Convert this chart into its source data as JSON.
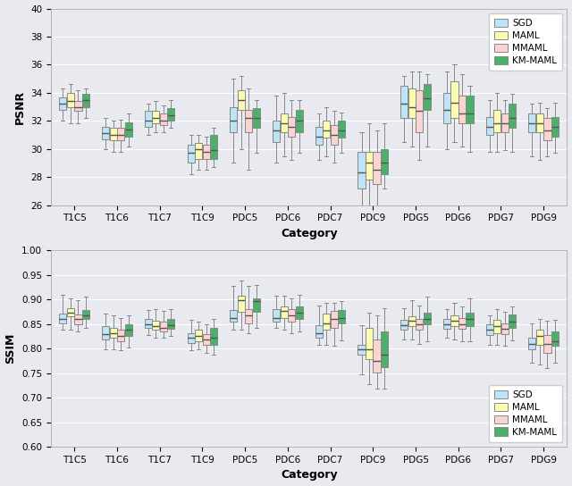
{
  "categories": [
    "T1C5",
    "T1C6",
    "T1C7",
    "T1C9",
    "PDC5",
    "PDC6",
    "PDC7",
    "PDC9",
    "PDG5",
    "PDG6",
    "PDG7",
    "PDG9"
  ],
  "methods": [
    "SGD",
    "MAML",
    "MMAML",
    "KM-MAML"
  ],
  "colors": [
    "#BDE3F5",
    "#FAFAB0",
    "#FAD4D0",
    "#4CAF6A"
  ],
  "psnr_data": {
    "SGD": [
      [
        32.0,
        32.8,
        33.2,
        33.7,
        34.3
      ],
      [
        30.0,
        30.7,
        31.1,
        31.6,
        32.2
      ],
      [
        31.0,
        31.6,
        32.0,
        32.7,
        33.2
      ],
      [
        28.2,
        29.0,
        29.7,
        30.3,
        31.0
      ],
      [
        29.0,
        31.2,
        32.0,
        33.0,
        35.0
      ],
      [
        29.0,
        30.5,
        31.3,
        32.0,
        33.8
      ],
      [
        29.2,
        30.3,
        30.9,
        31.6,
        32.5
      ],
      [
        24.5,
        27.2,
        28.3,
        29.8,
        31.2
      ],
      [
        30.5,
        32.2,
        33.2,
        34.5,
        35.2
      ],
      [
        30.0,
        31.8,
        32.8,
        34.0,
        35.5
      ],
      [
        29.8,
        31.0,
        31.6,
        32.3,
        33.5
      ],
      [
        29.5,
        31.2,
        31.8,
        32.5,
        33.2
      ]
    ],
    "MAML": [
      [
        31.8,
        33.0,
        33.4,
        34.0,
        34.6
      ],
      [
        29.8,
        30.6,
        31.0,
        31.5,
        32.0
      ],
      [
        31.2,
        31.8,
        32.2,
        32.7,
        33.4
      ],
      [
        28.5,
        29.3,
        30.0,
        30.4,
        31.0
      ],
      [
        30.0,
        32.8,
        33.5,
        34.2,
        35.2
      ],
      [
        29.5,
        31.2,
        31.8,
        32.5,
        34.0
      ],
      [
        29.5,
        30.8,
        31.3,
        32.0,
        33.0
      ],
      [
        25.5,
        27.8,
        29.0,
        29.8,
        31.8
      ],
      [
        30.2,
        32.2,
        33.0,
        34.3,
        35.5
      ],
      [
        30.5,
        32.2,
        33.3,
        34.8,
        36.0
      ],
      [
        29.8,
        31.2,
        31.8,
        32.8,
        34.0
      ],
      [
        29.2,
        31.2,
        31.8,
        32.5,
        33.3
      ]
    ],
    "MMAML": [
      [
        31.8,
        32.7,
        33.0,
        33.4,
        34.2
      ],
      [
        29.8,
        30.6,
        31.0,
        31.5,
        32.1
      ],
      [
        31.2,
        31.7,
        32.0,
        32.5,
        33.1
      ],
      [
        28.5,
        29.3,
        29.8,
        30.3,
        30.9
      ],
      [
        28.5,
        31.2,
        32.2,
        32.8,
        34.3
      ],
      [
        29.2,
        30.9,
        31.6,
        32.3,
        33.5
      ],
      [
        29.0,
        30.3,
        31.0,
        31.7,
        32.7
      ],
      [
        25.8,
        27.5,
        28.5,
        29.8,
        31.3
      ],
      [
        29.2,
        31.2,
        32.7,
        34.2,
        35.5
      ],
      [
        30.2,
        31.8,
        32.5,
        33.8,
        35.3
      ],
      [
        29.9,
        31.2,
        31.8,
        32.5,
        33.5
      ],
      [
        29.5,
        30.6,
        31.3,
        32.2,
        32.9
      ]
    ],
    "KM-MAML": [
      [
        32.2,
        33.0,
        33.5,
        33.9,
        34.3
      ],
      [
        30.2,
        30.9,
        31.4,
        31.9,
        32.5
      ],
      [
        31.5,
        32.0,
        32.4,
        32.9,
        33.5
      ],
      [
        28.7,
        29.3,
        29.9,
        31.0,
        31.5
      ],
      [
        29.7,
        31.5,
        32.2,
        32.9,
        33.5
      ],
      [
        29.7,
        31.2,
        32.0,
        32.8,
        33.5
      ],
      [
        29.7,
        30.8,
        31.3,
        32.0,
        32.6
      ],
      [
        27.2,
        28.2,
        29.0,
        30.0,
        31.8
      ],
      [
        30.2,
        32.8,
        33.6,
        34.6,
        35.3
      ],
      [
        29.8,
        31.8,
        32.5,
        33.8,
        34.5
      ],
      [
        29.8,
        31.5,
        32.2,
        33.2,
        33.9
      ],
      [
        29.7,
        30.9,
        31.6,
        32.3,
        33.3
      ]
    ]
  },
  "ssim_data": {
    "SGD": [
      [
        0.838,
        0.852,
        0.86,
        0.872,
        0.91
      ],
      [
        0.798,
        0.818,
        0.83,
        0.845,
        0.872
      ],
      [
        0.828,
        0.842,
        0.85,
        0.86,
        0.878
      ],
      [
        0.796,
        0.812,
        0.822,
        0.832,
        0.858
      ],
      [
        0.838,
        0.855,
        0.863,
        0.878,
        0.928
      ],
      [
        0.842,
        0.855,
        0.863,
        0.88,
        0.908
      ],
      [
        0.808,
        0.822,
        0.832,
        0.848,
        0.888
      ],
      [
        0.748,
        0.788,
        0.798,
        0.808,
        0.848
      ],
      [
        0.818,
        0.838,
        0.848,
        0.858,
        0.882
      ],
      [
        0.822,
        0.84,
        0.85,
        0.86,
        0.88
      ],
      [
        0.808,
        0.828,
        0.838,
        0.85,
        0.868
      ],
      [
        0.772,
        0.798,
        0.81,
        0.822,
        0.852
      ]
    ],
    "MAML": [
      [
        0.838,
        0.865,
        0.873,
        0.883,
        0.903
      ],
      [
        0.798,
        0.822,
        0.832,
        0.843,
        0.868
      ],
      [
        0.822,
        0.838,
        0.846,
        0.856,
        0.88
      ],
      [
        0.798,
        0.815,
        0.825,
        0.838,
        0.855
      ],
      [
        0.838,
        0.875,
        0.898,
        0.908,
        0.938
      ],
      [
        0.838,
        0.862,
        0.876,
        0.886,
        0.908
      ],
      [
        0.808,
        0.838,
        0.852,
        0.872,
        0.893
      ],
      [
        0.728,
        0.778,
        0.798,
        0.843,
        0.873
      ],
      [
        0.818,
        0.845,
        0.856,
        0.866,
        0.898
      ],
      [
        0.818,
        0.845,
        0.856,
        0.868,
        0.893
      ],
      [
        0.808,
        0.832,
        0.845,
        0.858,
        0.88
      ],
      [
        0.768,
        0.808,
        0.825,
        0.838,
        0.86
      ]
    ],
    "MMAML": [
      [
        0.835,
        0.85,
        0.86,
        0.87,
        0.898
      ],
      [
        0.797,
        0.815,
        0.825,
        0.838,
        0.863
      ],
      [
        0.822,
        0.835,
        0.842,
        0.855,
        0.876
      ],
      [
        0.792,
        0.808,
        0.818,
        0.83,
        0.85
      ],
      [
        0.832,
        0.852,
        0.868,
        0.88,
        0.928
      ],
      [
        0.832,
        0.855,
        0.868,
        0.88,
        0.903
      ],
      [
        0.805,
        0.842,
        0.86,
        0.876,
        0.893
      ],
      [
        0.718,
        0.752,
        0.775,
        0.818,
        0.868
      ],
      [
        0.81,
        0.838,
        0.85,
        0.86,
        0.888
      ],
      [
        0.815,
        0.84,
        0.85,
        0.863,
        0.886
      ],
      [
        0.805,
        0.83,
        0.84,
        0.852,
        0.874
      ],
      [
        0.76,
        0.792,
        0.81,
        0.828,
        0.856
      ]
    ],
    "KM-MAML": [
      [
        0.842,
        0.86,
        0.868,
        0.878,
        0.906
      ],
      [
        0.802,
        0.825,
        0.838,
        0.85,
        0.868
      ],
      [
        0.825,
        0.84,
        0.848,
        0.86,
        0.88
      ],
      [
        0.788,
        0.808,
        0.822,
        0.842,
        0.86
      ],
      [
        0.842,
        0.875,
        0.896,
        0.903,
        0.93
      ],
      [
        0.835,
        0.86,
        0.873,
        0.886,
        0.91
      ],
      [
        0.817,
        0.852,
        0.863,
        0.878,
        0.896
      ],
      [
        0.718,
        0.762,
        0.788,
        0.835,
        0.883
      ],
      [
        0.815,
        0.85,
        0.86,
        0.873,
        0.906
      ],
      [
        0.815,
        0.845,
        0.86,
        0.873,
        0.903
      ],
      [
        0.817,
        0.842,
        0.855,
        0.87,
        0.886
      ],
      [
        0.772,
        0.805,
        0.815,
        0.835,
        0.858
      ]
    ]
  },
  "psnr_ylim": [
    26,
    40
  ],
  "psnr_yticks": [
    26,
    28,
    30,
    32,
    34,
    36,
    38,
    40
  ],
  "ssim_ylim": [
    0.6,
    1.0
  ],
  "ssim_yticks": [
    0.6,
    0.65,
    0.7,
    0.75,
    0.8,
    0.85,
    0.9,
    0.95,
    1.0
  ],
  "bg_color": "#E8EAF0",
  "figsize": [
    6.4,
    5.44
  ],
  "dpi": 100
}
